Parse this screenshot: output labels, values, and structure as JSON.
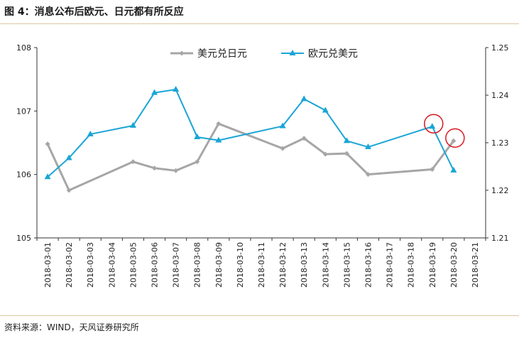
{
  "figure_title": "图 4：消息公布后欧元、日元都有所反应",
  "source_note": "资料来源：WIND，天风证券研究所",
  "chart_data": {
    "type": "line",
    "title": "",
    "x": [
      "2018-03-01",
      "2018-03-02",
      "2018-03-03",
      "2018-03-04",
      "2018-03-05",
      "2018-03-06",
      "2018-03-07",
      "2018-03-08",
      "2018-03-09",
      "2018-03-10",
      "2018-03-11",
      "2018-03-12",
      "2018-03-13",
      "2018-03-14",
      "2018-03-15",
      "2018-03-16",
      "2018-03-17",
      "2018-03-18",
      "2018-03-19",
      "2018-03-20",
      "2018-03-21"
    ],
    "y_left": {
      "ylim": [
        105,
        108
      ],
      "ticks": [
        "105",
        "106",
        "107",
        "108"
      ]
    },
    "y_right": {
      "ylim": [
        1.21,
        1.25
      ],
      "ticks": [
        "1.21",
        "1.22",
        "1.23",
        "1.24",
        "1.25"
      ]
    },
    "legend_position": "top-center",
    "grid": false,
    "series": [
      {
        "name": "美元兑日元",
        "axis": "left",
        "color": "#a6a6a6",
        "marker": "diamond",
        "points": [
          {
            "x": "2018-03-01",
            "y": 106.48
          },
          {
            "x": "2018-03-02",
            "y": 105.75
          },
          {
            "x": "2018-03-05",
            "y": 106.2
          },
          {
            "x": "2018-03-06",
            "y": 106.1
          },
          {
            "x": "2018-03-07",
            "y": 106.06
          },
          {
            "x": "2018-03-08",
            "y": 106.2
          },
          {
            "x": "2018-03-09",
            "y": 106.8
          },
          {
            "x": "2018-03-12",
            "y": 106.41
          },
          {
            "x": "2018-03-13",
            "y": 106.57
          },
          {
            "x": "2018-03-14",
            "y": 106.32
          },
          {
            "x": "2018-03-15",
            "y": 106.33
          },
          {
            "x": "2018-03-16",
            "y": 106.0
          },
          {
            "x": "2018-03-19",
            "y": 106.08
          },
          {
            "x": "2018-03-20",
            "y": 106.53
          }
        ]
      },
      {
        "name": "欧元兑美元",
        "axis": "right",
        "color": "#1aa5d6",
        "marker": "triangle",
        "points": [
          {
            "x": "2018-03-01",
            "y": 1.2228
          },
          {
            "x": "2018-03-02",
            "y": 1.2268
          },
          {
            "x": "2018-03-03",
            "y": 1.2318
          },
          {
            "x": "2018-03-05",
            "y": 1.2336
          },
          {
            "x": "2018-03-06",
            "y": 1.2405
          },
          {
            "x": "2018-03-07",
            "y": 1.2412
          },
          {
            "x": "2018-03-08",
            "y": 1.2312
          },
          {
            "x": "2018-03-09",
            "y": 1.2305
          },
          {
            "x": "2018-03-12",
            "y": 1.2335
          },
          {
            "x": "2018-03-13",
            "y": 1.2392
          },
          {
            "x": "2018-03-14",
            "y": 1.2368
          },
          {
            "x": "2018-03-15",
            "y": 1.2304
          },
          {
            "x": "2018-03-16",
            "y": 1.2291
          },
          {
            "x": "2018-03-19",
            "y": 1.2334
          },
          {
            "x": "2018-03-20",
            "y": 1.2242
          }
        ]
      }
    ],
    "annotations": [
      {
        "type": "circle",
        "series": "欧元兑美元",
        "x": "2018-03-19",
        "color": "#d71920"
      },
      {
        "type": "circle",
        "series": "美元兑日元",
        "x": "2018-03-20",
        "color": "#d71920"
      }
    ]
  }
}
